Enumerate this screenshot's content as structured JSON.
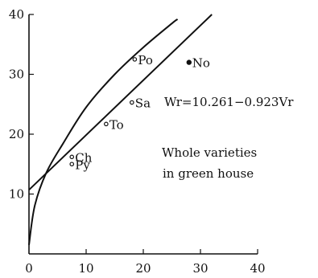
{
  "chart_data": {
    "type": "scatter",
    "xlim": [
      0,
      40
    ],
    "ylim": [
      0,
      40
    ],
    "x_ticks": [
      0,
      10,
      20,
      30,
      40
    ],
    "y_ticks": [
      10,
      20,
      30,
      40
    ],
    "points": [
      {
        "label": "Po",
        "x": 18.5,
        "y": 32.5,
        "marker": "open"
      },
      {
        "label": "No",
        "x": 28.0,
        "y": 32.0,
        "marker": "filled"
      },
      {
        "label": "Sa",
        "x": 18.0,
        "y": 25.3,
        "marker": "open"
      },
      {
        "label": "To",
        "x": 13.5,
        "y": 21.7,
        "marker": "open"
      },
      {
        "label": "Ch",
        "x": 7.5,
        "y": 16.2,
        "marker": "open"
      },
      {
        "label": "Py",
        "x": 7.5,
        "y": 15.0,
        "marker": "open"
      }
    ],
    "lines": [
      {
        "kind": "straight",
        "points": [
          [
            0,
            10.7
          ],
          [
            32,
            40
          ]
        ]
      },
      {
        "kind": "curve",
        "points": [
          [
            0,
            1.5
          ],
          [
            1,
            8
          ],
          [
            3,
            13.5
          ],
          [
            6,
            18.5
          ],
          [
            10,
            24.5
          ],
          [
            15,
            30
          ],
          [
            20,
            34.5
          ],
          [
            25,
            38.5
          ],
          [
            26,
            39.2
          ]
        ]
      }
    ],
    "annotations": {
      "equation": "Wr=10.261−0.923Vr",
      "note_line1": "Whole varieties",
      "note_line2": "in green house"
    },
    "grid": false
  }
}
